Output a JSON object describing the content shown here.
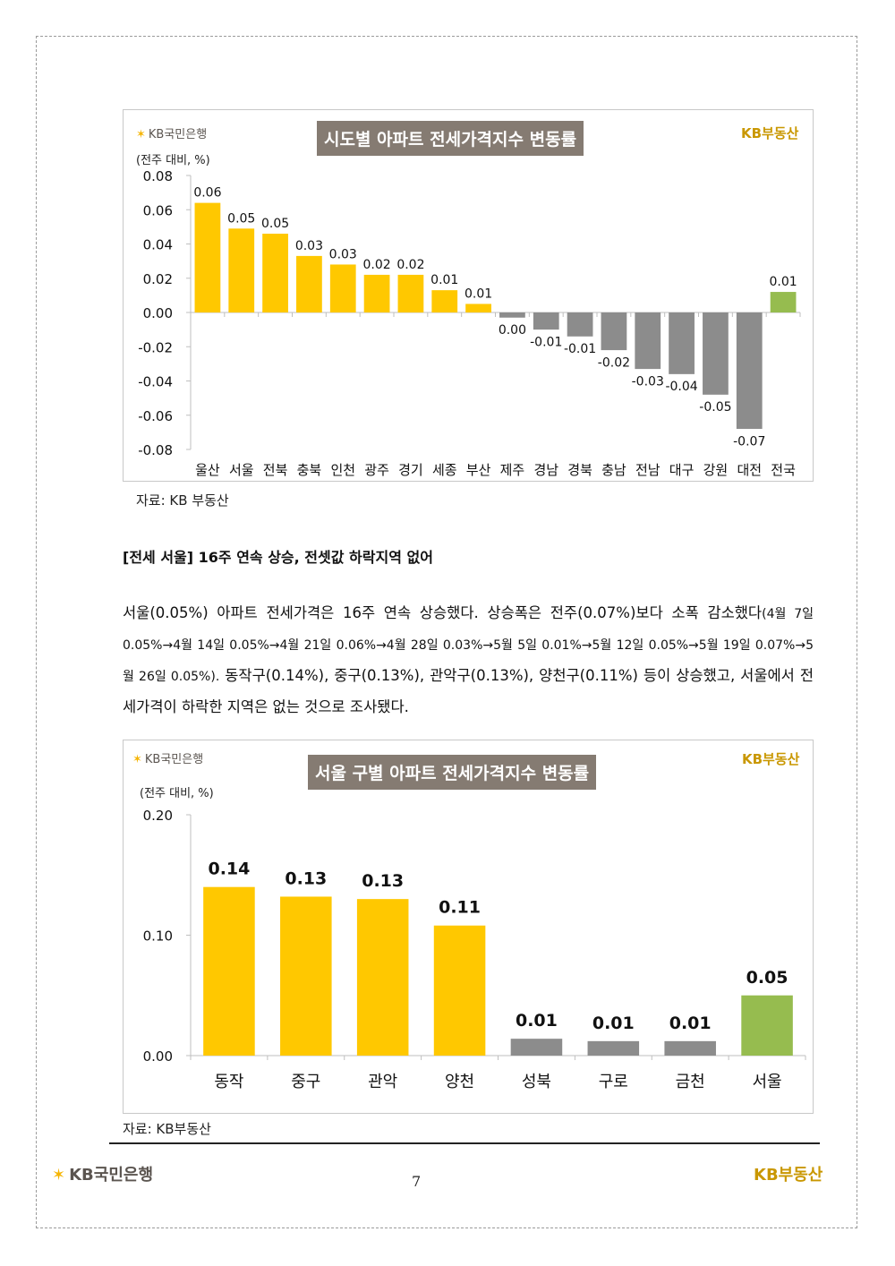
{
  "brand": {
    "bank": "KB국민은행",
    "realestate": "KB부동산"
  },
  "chart1": {
    "title": "시도별 아파트 전세가격지수 변동률",
    "unit": "(전주 대비, %)",
    "source": "자료: KB 부동산"
  },
  "chart2": {
    "title": "서울 구별 아파트 전세가격지수 변동률",
    "unit": "(전주 대비, %)",
    "source": "자료: KB부동산"
  },
  "section": {
    "heading": "[전세 서울] 16주 연속 상승, 전셋값 하락지역 없어",
    "para_part1": "서울(0.05%) 아파트 전세가격은 16주 연속 상승했다. 상승폭은 전주(0.07%)보다 소폭 감소했다",
    "para_part2": "(4월 7일 0.05%→4월 14일 0.05%→4월 21일 0.06%→4월 28일 0.03%→5월 5일 0.01%→5월 12일 0.05%→5월 19일 0.07%→5월 26일 0.05%).",
    "para_part3": " 동작구(0.14%), 중구(0.13%), 관악구(0.13%), 양천구(0.11%) 등이 상승했고, 서울에서 전세가격이 하락한 지역은 없는 것으로 조사됐다."
  },
  "footer": {
    "bank": "KB국민은행",
    "realestate": "KB부동산",
    "page": "7"
  },
  "colors": {
    "yellow": "#ffc800",
    "gray": "#8c8c8c",
    "green": "#96bc4f",
    "title_bg": "#857b72",
    "brand_gold": "#c99700"
  },
  "chart_data": [
    {
      "type": "bar",
      "categories": [
        "울산",
        "서울",
        "전북",
        "충북",
        "인천",
        "광주",
        "경기",
        "세종",
        "부산",
        "제주",
        "경남",
        "경북",
        "충남",
        "전남",
        "대구",
        "강원",
        "대전",
        "전국"
      ],
      "values": [
        0.064,
        0.049,
        0.046,
        0.033,
        0.028,
        0.022,
        0.022,
        0.013,
        0.005,
        -0.003,
        -0.01,
        -0.014,
        -0.022,
        -0.033,
        -0.036,
        -0.048,
        -0.068,
        0.012
      ],
      "labels": [
        "0.06",
        "0.05",
        "0.05",
        "0.03",
        "0.03",
        "0.02",
        "0.02",
        "0.01",
        "0.01",
        "0.00",
        "-0.01",
        "-0.01",
        "-0.02",
        "-0.03",
        "-0.04",
        "-0.05",
        "-0.07",
        "0.01"
      ],
      "colors": [
        "yellow",
        "yellow",
        "yellow",
        "yellow",
        "yellow",
        "yellow",
        "yellow",
        "yellow",
        "yellow",
        "gray",
        "gray",
        "gray",
        "gray",
        "gray",
        "gray",
        "gray",
        "gray",
        "green"
      ],
      "yticks": [
        "0.08",
        "0.06",
        "0.04",
        "0.02",
        "0.00",
        "-0.02",
        "-0.04",
        "-0.06",
        "-0.08"
      ],
      "ylim": [
        -0.08,
        0.08
      ]
    },
    {
      "type": "bar",
      "categories": [
        "동작",
        "중구",
        "관악",
        "양천",
        "성북",
        "구로",
        "금천",
        "서울"
      ],
      "values": [
        0.14,
        0.132,
        0.13,
        0.108,
        0.014,
        0.012,
        0.012,
        0.05
      ],
      "labels": [
        "0.14",
        "0.13",
        "0.13",
        "0.11",
        "0.01",
        "0.01",
        "0.01",
        "0.05"
      ],
      "colors": [
        "yellow",
        "yellow",
        "yellow",
        "yellow",
        "gray",
        "gray",
        "gray",
        "green"
      ],
      "yticks": [
        "0.20",
        "0.10",
        "0.00"
      ],
      "ylim": [
        0,
        0.2
      ]
    }
  ]
}
